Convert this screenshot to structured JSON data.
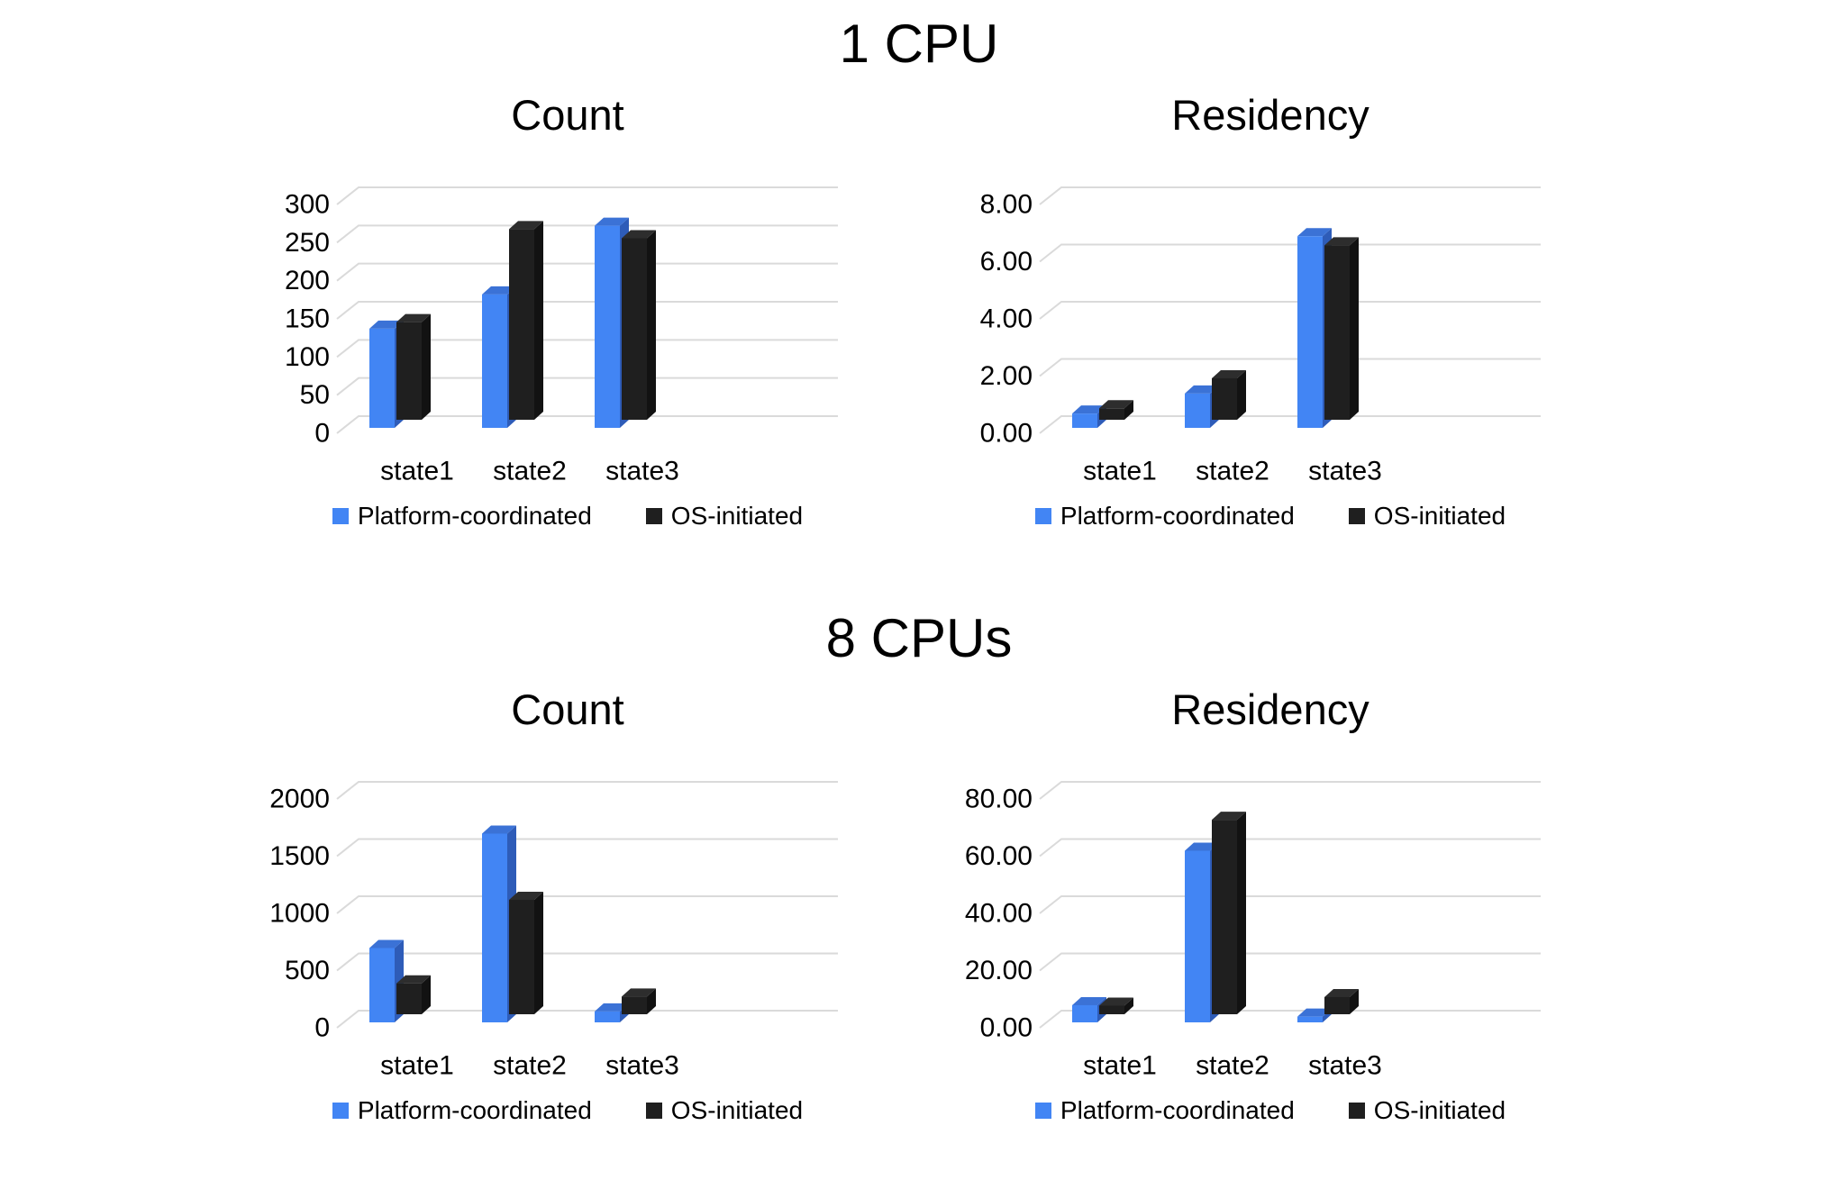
{
  "sections": [
    {
      "title": "1 CPU"
    },
    {
      "title": "8 CPUs"
    }
  ],
  "colors": {
    "background": "#ffffff",
    "text": "#000000",
    "grid": "#dadada",
    "series": [
      {
        "name": "Platform-coordinated",
        "front": "#4285f4",
        "top": "#3b72d6",
        "side": "#2e5cb8"
      },
      {
        "name": "OS-initiated",
        "front": "#1f1f1f",
        "top": "#2d2d2d",
        "side": "#121212"
      }
    ]
  },
  "chart_data": [
    {
      "type": "bar",
      "variant": "3d-column",
      "section": 0,
      "title": "Count",
      "categories": [
        "state1",
        "state2",
        "state3"
      ],
      "series": [
        {
          "name": "Platform-coordinated",
          "values": [
            130,
            175,
            265
          ]
        },
        {
          "name": "OS-initiated",
          "values": [
            128,
            250,
            238
          ]
        }
      ],
      "ylim": [
        0,
        300
      ],
      "y_ticks": [
        {
          "label": "300",
          "value": 300
        },
        {
          "label": "250",
          "value": 250
        },
        {
          "label": "200",
          "value": 200
        },
        {
          "label": "150",
          "value": 150
        },
        {
          "label": "100",
          "value": 100
        },
        {
          "label": "50",
          "value": 50
        },
        {
          "label": "0",
          "value": 0
        }
      ],
      "grid": true,
      "legend_position": "bottom"
    },
    {
      "type": "bar",
      "variant": "3d-column",
      "section": 0,
      "title": "Residency",
      "categories": [
        "state1",
        "state2",
        "state3"
      ],
      "series": [
        {
          "name": "Platform-coordinated",
          "values": [
            0.5,
            1.2,
            6.7
          ]
        },
        {
          "name": "OS-initiated",
          "values": [
            0.4,
            1.45,
            6.1
          ]
        }
      ],
      "ylim": [
        0,
        8
      ],
      "y_ticks": [
        {
          "label": "8.00",
          "value": 8
        },
        {
          "label": "6.00",
          "value": 6
        },
        {
          "label": "4.00",
          "value": 4
        },
        {
          "label": "2.00",
          "value": 2
        },
        {
          "label": "0.00",
          "value": 0
        }
      ],
      "grid": true,
      "legend_position": "bottom"
    },
    {
      "type": "bar",
      "variant": "3d-column",
      "section": 1,
      "title": "Count",
      "categories": [
        "state1",
        "state2",
        "state3"
      ],
      "series": [
        {
          "name": "Platform-coordinated",
          "values": [
            650,
            1650,
            95
          ]
        },
        {
          "name": "OS-initiated",
          "values": [
            270,
            1000,
            155
          ]
        }
      ],
      "ylim": [
        0,
        2000
      ],
      "y_ticks": [
        {
          "label": "2000",
          "value": 2000
        },
        {
          "label": "1500",
          "value": 1500
        },
        {
          "label": "1000",
          "value": 1000
        },
        {
          "label": "500",
          "value": 500
        },
        {
          "label": "0",
          "value": 0
        }
      ],
      "grid": true,
      "legend_position": "bottom"
    },
    {
      "type": "bar",
      "variant": "3d-column",
      "section": 1,
      "title": "Residency",
      "categories": [
        "state1",
        "state2",
        "state3"
      ],
      "series": [
        {
          "name": "Platform-coordinated",
          "values": [
            6,
            60,
            2
          ]
        },
        {
          "name": "OS-initiated",
          "values": [
            3,
            68,
            6
          ]
        }
      ],
      "ylim": [
        0,
        80
      ],
      "y_ticks": [
        {
          "label": "80.00",
          "value": 80
        },
        {
          "label": "60.00",
          "value": 60
        },
        {
          "label": "40.00",
          "value": 40
        },
        {
          "label": "20.00",
          "value": 20
        },
        {
          "label": "0.00",
          "value": 0
        }
      ],
      "grid": true,
      "legend_position": "bottom"
    }
  ]
}
